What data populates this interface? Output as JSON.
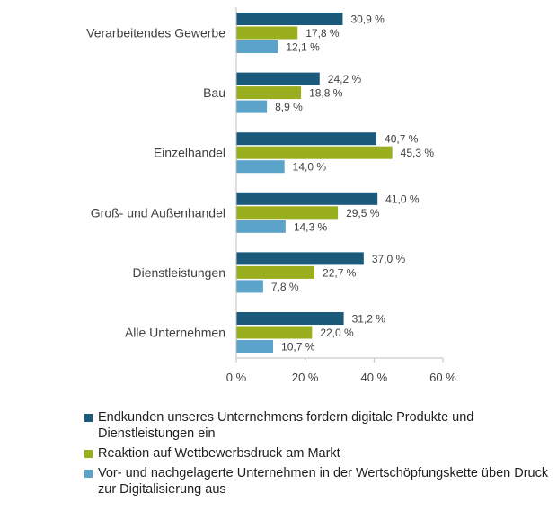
{
  "chart_data": {
    "type": "bar",
    "orientation": "horizontal",
    "categories": [
      "Verarbeitendes Gewerbe",
      "Bau",
      "Einzelhandel",
      "Groß- und Außenhandel",
      "Dienstleistungen",
      "Alle Unternehmen"
    ],
    "series": [
      {
        "name": "Endkunden unseres Unternehmens fordern digitale Produkte und Dienstleistungen ein",
        "color": "#1b5a7a",
        "values": [
          30.9,
          24.2,
          40.7,
          41.0,
          37.0,
          31.2
        ],
        "labels": [
          "30,9 %",
          "24,2 %",
          "40,7 %",
          "41,0 %",
          "37,0 %",
          "31,2 %"
        ]
      },
      {
        "name": "Reaktion auf Wettbewerbsdruck am Markt",
        "color": "#9aaf1e",
        "values": [
          17.8,
          18.8,
          45.3,
          29.5,
          22.7,
          22.0
        ],
        "labels": [
          "17,8 %",
          "18,8 %",
          "45,3 %",
          "29,5 %",
          "22,7 %",
          "22,0 %"
        ]
      },
      {
        "name": "Vor- und nachgelagerte Unternehmen in der Wertschöpfungskette üben Druck zur Digitalisierung aus",
        "color": "#5ba3c9",
        "values": [
          12.1,
          8.9,
          14.0,
          14.3,
          7.8,
          10.7
        ],
        "labels": [
          "12,1 %",
          "8,9 %",
          "14,0 %",
          "14,3 %",
          "7,8 %",
          "10,7 %"
        ]
      }
    ],
    "xlim": [
      0,
      60
    ],
    "ticks": [
      0,
      20,
      40,
      60
    ],
    "tick_labels": [
      "0 %",
      "20 %",
      "40 %",
      "60 %"
    ],
    "grid": false,
    "legend_position": "bottom"
  }
}
